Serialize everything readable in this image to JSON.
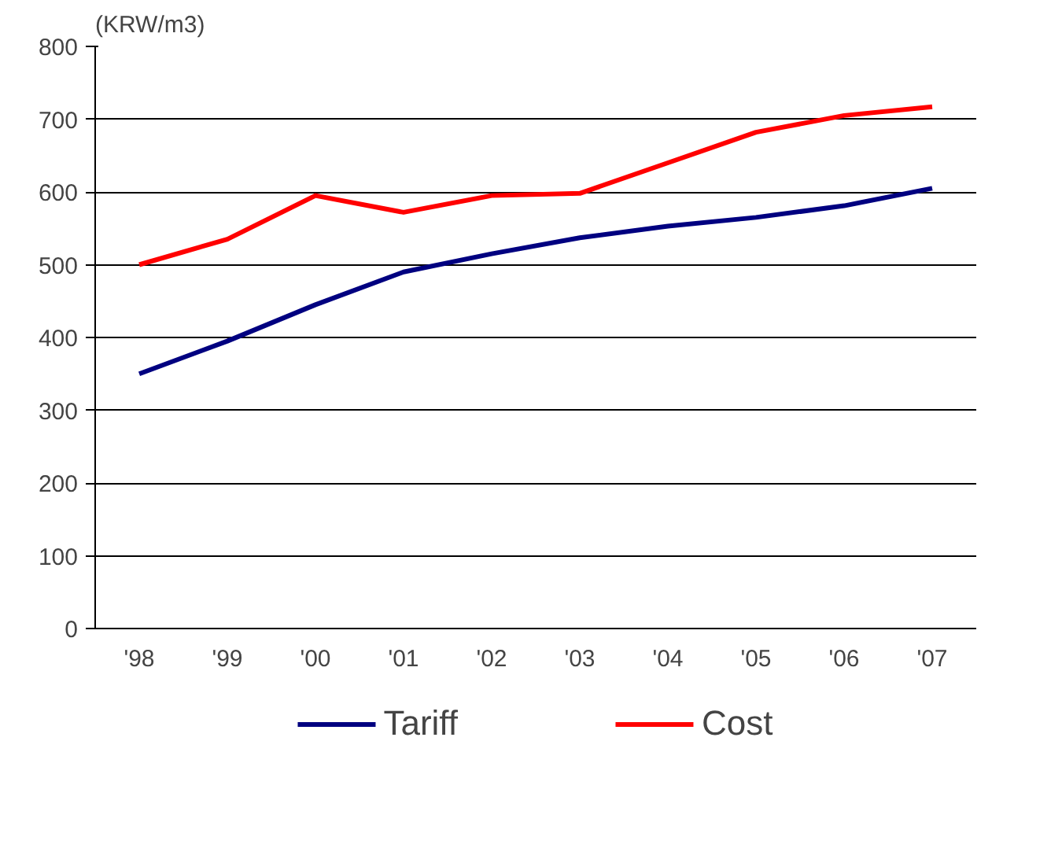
{
  "chart_data": {
    "type": "line",
    "ylabel": "(KRW/m3)",
    "categories": [
      "'98",
      "'99",
      "'00",
      "'01",
      "'02",
      "'03",
      "'04",
      "'05",
      "'06",
      "'07"
    ],
    "series": [
      {
        "name": "Tariff",
        "color": "#000080",
        "values": [
          350,
          395,
          445,
          490,
          515,
          537,
          553,
          565,
          581,
          605
        ]
      },
      {
        "name": "Cost",
        "color": "#ff0000",
        "values": [
          500,
          535,
          595,
          572,
          595,
          598,
          640,
          682,
          705,
          717
        ]
      }
    ],
    "ylim": [
      0,
      800
    ],
    "yticks": [
      0,
      100,
      200,
      300,
      400,
      500,
      600,
      700,
      800
    ],
    "grid": "y",
    "legend": "bottom",
    "line_style": "solid"
  }
}
